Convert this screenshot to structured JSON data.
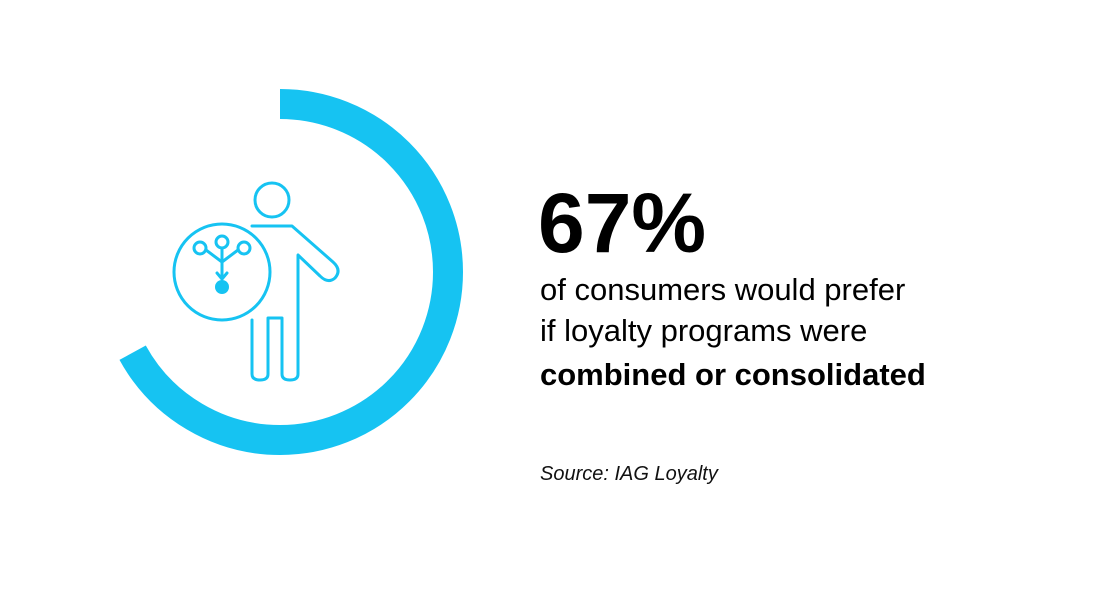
{
  "stat": {
    "value": 67,
    "value_label": "67%",
    "color": "#16c3f2",
    "lines": [
      "of consumers would prefer",
      "if loyalty programs were"
    ],
    "emphasis": "combined or consolidated"
  },
  "source": "Source: IAG Loyalty"
}
